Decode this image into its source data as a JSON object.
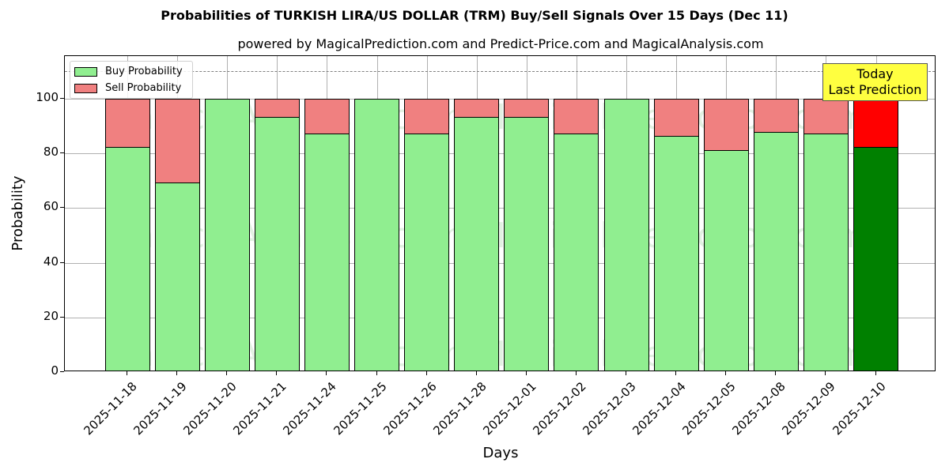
{
  "chart_data": {
    "type": "bar",
    "stacked": true,
    "title": "Probabilities of TURKISH LIRA/US DOLLAR (TRM) Buy/Sell Signals Over 15 Days (Dec 11)",
    "subtitle": "powered by MagicalPrediction.com and Predict-Price.com and MagicalAnalysis.com",
    "xlabel": "Days",
    "ylabel": "Probability",
    "ylim": [
      0,
      115
    ],
    "yticks": [
      0,
      20,
      40,
      60,
      80,
      100
    ],
    "grid": true,
    "legend_position": "upper left",
    "reference_line": {
      "y": 110,
      "style": "dashed",
      "color": "#808080"
    },
    "categories": [
      "2025-11-18",
      "2025-11-19",
      "2025-11-20",
      "2025-11-21",
      "2025-11-24",
      "2025-11-25",
      "2025-11-26",
      "2025-11-28",
      "2025-12-01",
      "2025-12-02",
      "2025-12-03",
      "2025-12-04",
      "2025-12-05",
      "2025-12-08",
      "2025-12-09",
      "2025-12-10"
    ],
    "series": [
      {
        "name": "Buy Probability",
        "color": "#90ee90",
        "values": [
          82.3,
          69.4,
          100,
          93.4,
          87.3,
          100,
          87.3,
          93.4,
          93.4,
          87.2,
          100,
          86.4,
          81.2,
          88.0,
          87.3,
          82.3
        ]
      },
      {
        "name": "Sell Probability",
        "color": "#f08080",
        "values": [
          17.7,
          30.6,
          0,
          6.6,
          12.7,
          0,
          12.7,
          6.6,
          6.6,
          12.8,
          0,
          13.6,
          18.8,
          12.0,
          12.7,
          17.7
        ]
      }
    ],
    "highlight": {
      "category": "2025-12-10",
      "buy_color": "#008000",
      "sell_color": "#ff0000",
      "annotation": "Today\nLast Prediction"
    }
  },
  "header": {
    "title": "Probabilities of TURKISH LIRA/US DOLLAR (TRM) Buy/Sell Signals Over 15 Days (Dec 11)",
    "subtitle": "powered by MagicalPrediction.com and Predict-Price.com and MagicalAnalysis.com"
  },
  "legend": {
    "buy_label": "Buy Probability",
    "sell_label": "Sell Probability"
  },
  "annotation": {
    "line1": "Today",
    "line2": "Last Prediction"
  },
  "axes": {
    "xlabel": "Days",
    "ylabel": "Probability"
  },
  "watermarks": [
    "MagicalAnalysis.com",
    "MagicalPrediction.com"
  ]
}
